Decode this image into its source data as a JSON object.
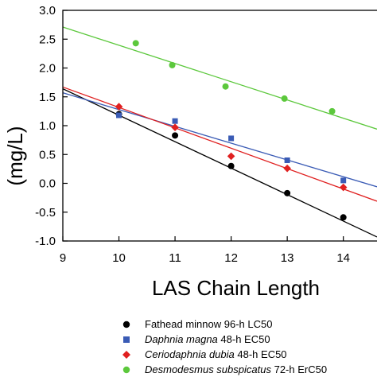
{
  "chart_data": {
    "type": "scatter",
    "xlabel": "LAS Chain Length",
    "ylabel": "(mg/L)",
    "xlim": [
      9,
      14.6
    ],
    "ylim": [
      -1.0,
      3.0
    ],
    "x_ticks": [
      "9",
      "10",
      "11",
      "12",
      "13",
      "14"
    ],
    "y_ticks": [
      "-1.0",
      "-0.5",
      "0.0",
      "0.5",
      "1.0",
      "1.5",
      "2.0",
      "2.5",
      "3.0"
    ],
    "grid": false,
    "legend_position": "bottom",
    "series": [
      {
        "name": "Fathead minnow 96-h LC50",
        "species": "Fathead minnow",
        "endpoint": "96-h LC50",
        "italic": false,
        "marker": "circle",
        "color": "#000000",
        "x": [
          10,
          11,
          12,
          13,
          14
        ],
        "y": [
          1.2,
          0.83,
          0.3,
          -0.17,
          -0.59
        ],
        "fit": [
          [
            9,
            1.64
          ],
          [
            14.6,
            -0.93
          ]
        ]
      },
      {
        "name": "Daphnia magna 48-h EC50",
        "species": "Daphnia magna",
        "endpoint": "48-h EC50",
        "italic": true,
        "marker": "square",
        "color": "#3a5bb5",
        "x": [
          10,
          11,
          12,
          13,
          14
        ],
        "y": [
          1.18,
          1.08,
          0.78,
          0.4,
          0.05
        ],
        "fit": [
          [
            9,
            1.57
          ],
          [
            14.6,
            -0.06
          ]
        ]
      },
      {
        "name": "Ceriodaphnia dubia 48-h EC50",
        "species": "Ceriodaphnia dubia",
        "endpoint": "48-h EC50",
        "italic": true,
        "marker": "diamond",
        "color": "#e02020",
        "x": [
          10,
          11,
          12,
          13,
          14
        ],
        "y": [
          1.33,
          0.97,
          0.47,
          0.26,
          -0.07
        ],
        "fit": [
          [
            9,
            1.67
          ],
          [
            14.6,
            -0.31
          ]
        ]
      },
      {
        "name": "Desmodesmus subspicatus 72-h ErC50",
        "species": "Desmodesmus subspicatus",
        "endpoint": "72-h ErC50",
        "italic": true,
        "marker": "circle",
        "color": "#5cc83c",
        "x": [
          10.3,
          10.95,
          11.9,
          12.95,
          13.8
        ],
        "y": [
          2.43,
          2.05,
          1.68,
          1.47,
          1.25
        ],
        "fit": [
          [
            9,
            2.71
          ],
          [
            14.6,
            0.94
          ]
        ]
      }
    ]
  }
}
